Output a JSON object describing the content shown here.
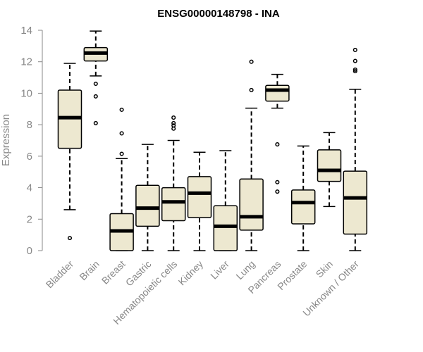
{
  "chart_data": {
    "type": "boxplot",
    "title": "ENSG00000148798 - INA",
    "xlabel": "",
    "ylabel": "Expression",
    "ylim": [
      0,
      14
    ],
    "yticks": [
      0,
      2,
      4,
      6,
      8,
      10,
      12,
      14
    ],
    "grid": false,
    "box_color": "#ede8d0",
    "line_color": "#000000",
    "axis_color": "#888888",
    "series": [
      {
        "name": "Bladder",
        "whisker_low": 2.6,
        "q1": 6.5,
        "median": 8.45,
        "q3": 10.2,
        "whisker_high": 11.9,
        "outliers": [
          0.8
        ]
      },
      {
        "name": "Brain",
        "whisker_low": 11.1,
        "q1": 12.05,
        "median": 12.55,
        "q3": 12.9,
        "whisker_high": 13.95,
        "outliers": [
          10.6,
          9.8,
          8.1
        ]
      },
      {
        "name": "Breast",
        "whisker_low": 0.0,
        "q1": 0.0,
        "median": 1.25,
        "q3": 2.35,
        "whisker_high": 5.85,
        "outliers": [
          6.15,
          7.45,
          8.95
        ]
      },
      {
        "name": "Gastric",
        "whisker_low": 0.0,
        "q1": 1.55,
        "median": 2.7,
        "q3": 4.15,
        "whisker_high": 6.75,
        "outliers": []
      },
      {
        "name": "Hematopoietic cells",
        "whisker_low": 0.0,
        "q1": 1.9,
        "median": 3.1,
        "q3": 4.0,
        "whisker_high": 7.0,
        "outliers": [
          7.75,
          7.95,
          8.1,
          8.45
        ]
      },
      {
        "name": "Kidney",
        "whisker_low": 0.0,
        "q1": 2.1,
        "median": 3.65,
        "q3": 4.7,
        "whisker_high": 6.25,
        "outliers": []
      },
      {
        "name": "Liver",
        "whisker_low": 0.0,
        "q1": 0.0,
        "median": 1.55,
        "q3": 2.85,
        "whisker_high": 6.35,
        "outliers": []
      },
      {
        "name": "Lung",
        "whisker_low": 0.0,
        "q1": 1.3,
        "median": 2.15,
        "q3": 4.55,
        "whisker_high": 9.05,
        "outliers": [
          10.2,
          12.0
        ]
      },
      {
        "name": "Pancreas",
        "whisker_low": 9.05,
        "q1": 9.5,
        "median": 10.2,
        "q3": 10.5,
        "whisker_high": 11.2,
        "outliers": [
          6.75,
          4.35,
          3.75
        ]
      },
      {
        "name": "Prostate",
        "whisker_low": 0.0,
        "q1": 1.7,
        "median": 3.05,
        "q3": 3.85,
        "whisker_high": 6.65,
        "outliers": []
      },
      {
        "name": "Skin",
        "whisker_low": 2.8,
        "q1": 4.4,
        "median": 5.1,
        "q3": 6.4,
        "whisker_high": 7.5,
        "outliers": []
      },
      {
        "name": "Unknown / Other",
        "whisker_low": 0.0,
        "q1": 1.05,
        "median": 3.35,
        "q3": 5.05,
        "whisker_high": 10.25,
        "outliers": [
          11.4,
          11.5,
          12.05,
          12.75
        ]
      }
    ]
  }
}
